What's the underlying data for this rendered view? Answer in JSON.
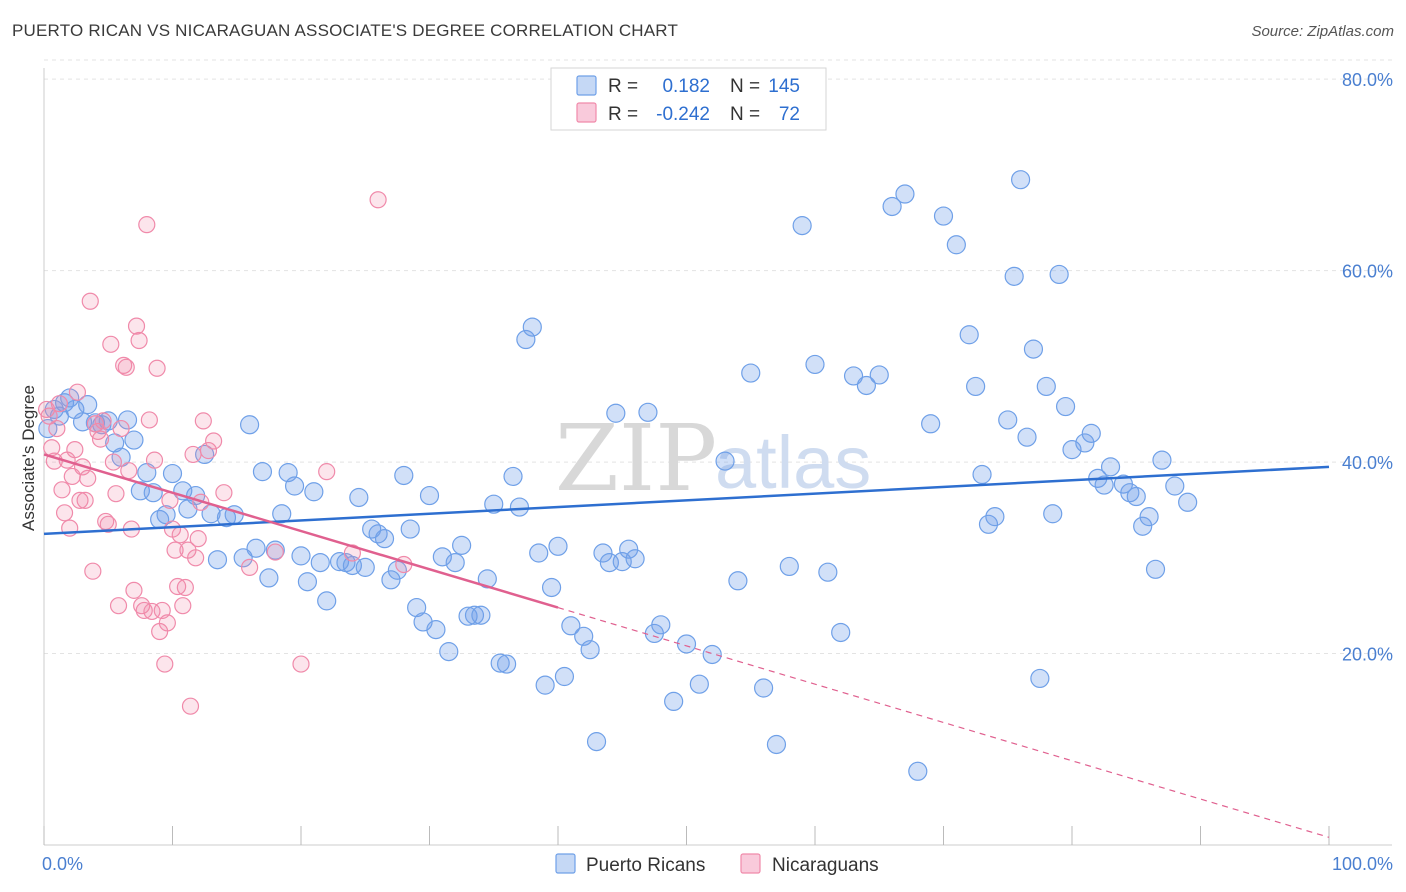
{
  "header": {
    "title": "PUERTO RICAN VS NICARAGUAN ASSOCIATE'S DEGREE CORRELATION CHART",
    "source": "Source: ZipAtlas.com"
  },
  "watermark": {
    "zip": "ZIP",
    "atlas": "atlas"
  },
  "legend": {
    "rows": [
      {
        "r_label": "R =",
        "r_value": "0.182",
        "n_label": "N =",
        "n_value": "145",
        "color": "#6fa0e8"
      },
      {
        "r_label": "R =",
        "r_value": "-0.242",
        "n_label": "N =",
        "n_value": "72",
        "color": "#f08aaa"
      }
    ]
  },
  "bottom_legend": {
    "items": [
      {
        "label": "Puerto Ricans",
        "color": "#6fa0e8"
      },
      {
        "label": "Nicaraguans",
        "color": "#f08aaa"
      }
    ]
  },
  "chart_data": {
    "type": "scatter",
    "title": "PUERTO RICAN VS NICARAGUAN ASSOCIATE'S DEGREE CORRELATION CHART",
    "xlabel": "",
    "ylabel": "Associate's Degree",
    "xlim": [
      0,
      100
    ],
    "ylim": [
      0,
      82
    ],
    "x_tick_labels": [
      "0.0%",
      "100.0%"
    ],
    "y_ticks": [
      20,
      40,
      60,
      80
    ],
    "y_tick_labels": [
      "20.0%",
      "40.0%",
      "60.0%",
      "80.0%"
    ],
    "grid": true,
    "legend_position": "top-center",
    "colors": {
      "puerto_ricans": "#6fa0e8",
      "nicaraguans": "#f08aaa",
      "pr_line": "#2e6fd0",
      "nic_line": "#e0608f"
    },
    "series": [
      {
        "name": "Puerto Ricans",
        "r": 0.182,
        "n": 145,
        "trend": {
          "x": [
            0,
            100
          ],
          "y": [
            32.5,
            39.5
          ]
        },
        "points": [
          [
            0.3,
            43.5
          ],
          [
            0.8,
            45.5
          ],
          [
            1.2,
            44.8
          ],
          [
            1.6,
            46.2
          ],
          [
            2.0,
            46.7
          ],
          [
            2.4,
            45.5
          ],
          [
            3.0,
            44.2
          ],
          [
            3.4,
            46.0
          ],
          [
            4.0,
            44.1
          ],
          [
            4.5,
            43.9
          ],
          [
            5.0,
            44.3
          ],
          [
            5.5,
            42.0
          ],
          [
            6.0,
            40.5
          ],
          [
            6.5,
            44.4
          ],
          [
            7.0,
            42.3
          ],
          [
            7.5,
            37.0
          ],
          [
            8.0,
            38.9
          ],
          [
            8.5,
            36.8
          ],
          [
            9.0,
            34.0
          ],
          [
            9.5,
            34.5
          ],
          [
            10.0,
            38.8
          ],
          [
            10.8,
            37.0
          ],
          [
            11.2,
            35.1
          ],
          [
            11.8,
            36.5
          ],
          [
            12.5,
            40.8
          ],
          [
            13.0,
            34.6
          ],
          [
            13.5,
            29.8
          ],
          [
            14.2,
            34.2
          ],
          [
            14.8,
            34.5
          ],
          [
            15.5,
            30.0
          ],
          [
            16.0,
            43.9
          ],
          [
            16.5,
            31.0
          ],
          [
            17.0,
            39.0
          ],
          [
            17.5,
            27.9
          ],
          [
            18.0,
            30.8
          ],
          [
            18.5,
            34.6
          ],
          [
            19.0,
            38.9
          ],
          [
            19.5,
            37.5
          ],
          [
            20.0,
            30.2
          ],
          [
            20.5,
            27.5
          ],
          [
            21.0,
            36.9
          ],
          [
            21.5,
            29.5
          ],
          [
            22.0,
            25.5
          ],
          [
            23.0,
            29.6
          ],
          [
            23.5,
            29.5
          ],
          [
            24.0,
            29.2
          ],
          [
            24.5,
            36.3
          ],
          [
            25.0,
            29.0
          ],
          [
            25.5,
            33.0
          ],
          [
            26.0,
            32.5
          ],
          [
            26.5,
            32.0
          ],
          [
            27.0,
            27.7
          ],
          [
            27.5,
            28.7
          ],
          [
            28.0,
            38.6
          ],
          [
            28.5,
            33.0
          ],
          [
            29.0,
            24.8
          ],
          [
            29.5,
            23.3
          ],
          [
            30.0,
            36.5
          ],
          [
            30.5,
            22.5
          ],
          [
            31.0,
            30.1
          ],
          [
            31.5,
            20.2
          ],
          [
            32.0,
            29.5
          ],
          [
            32.5,
            31.3
          ],
          [
            33.0,
            23.9
          ],
          [
            33.5,
            24.0
          ],
          [
            34.0,
            24.0
          ],
          [
            34.5,
            27.8
          ],
          [
            35.0,
            35.6
          ],
          [
            35.5,
            19.0
          ],
          [
            36.0,
            18.9
          ],
          [
            36.5,
            38.5
          ],
          [
            37.0,
            35.3
          ],
          [
            37.5,
            52.8
          ],
          [
            38.0,
            54.1
          ],
          [
            38.5,
            30.5
          ],
          [
            39.0,
            16.7
          ],
          [
            39.5,
            26.9
          ],
          [
            40.0,
            31.2
          ],
          [
            40.5,
            17.6
          ],
          [
            41.0,
            22.9
          ],
          [
            42.0,
            21.8
          ],
          [
            42.5,
            20.4
          ],
          [
            43.0,
            10.8
          ],
          [
            43.5,
            30.5
          ],
          [
            44.0,
            29.5
          ],
          [
            44.5,
            45.1
          ],
          [
            45.0,
            29.6
          ],
          [
            45.5,
            30.9
          ],
          [
            46.0,
            29.9
          ],
          [
            47.0,
            45.2
          ],
          [
            47.5,
            22.1
          ],
          [
            48.0,
            23.0
          ],
          [
            49.0,
            15.0
          ],
          [
            50.0,
            21.0
          ],
          [
            51.0,
            16.8
          ],
          [
            52.0,
            19.9
          ],
          [
            53.0,
            40.1
          ],
          [
            54.0,
            27.6
          ],
          [
            55.0,
            49.3
          ],
          [
            56.0,
            16.4
          ],
          [
            57.0,
            10.5
          ],
          [
            58.0,
            29.1
          ],
          [
            59.0,
            64.7
          ],
          [
            60.0,
            50.2
          ],
          [
            61.0,
            28.5
          ],
          [
            62.0,
            22.2
          ],
          [
            63.0,
            49.0
          ],
          [
            64.0,
            48.0
          ],
          [
            65.0,
            49.1
          ],
          [
            66.0,
            66.7
          ],
          [
            67.0,
            68.0
          ],
          [
            68.0,
            7.7
          ],
          [
            69.0,
            44.0
          ],
          [
            70.0,
            65.7
          ],
          [
            71.0,
            62.7
          ],
          [
            72.0,
            53.3
          ],
          [
            72.5,
            47.9
          ],
          [
            73.0,
            38.7
          ],
          [
            73.5,
            33.5
          ],
          [
            74.0,
            34.3
          ],
          [
            75.0,
            44.4
          ],
          [
            75.5,
            59.4
          ],
          [
            76.0,
            69.5
          ],
          [
            76.5,
            42.6
          ],
          [
            77.0,
            51.8
          ],
          [
            77.5,
            17.4
          ],
          [
            78.0,
            47.9
          ],
          [
            78.5,
            34.6
          ],
          [
            79.0,
            59.6
          ],
          [
            79.5,
            45.8
          ],
          [
            80.0,
            41.3
          ],
          [
            81.0,
            42.0
          ],
          [
            81.5,
            43.0
          ],
          [
            82.0,
            38.3
          ],
          [
            82.5,
            37.6
          ],
          [
            83.0,
            39.5
          ],
          [
            84.0,
            37.7
          ],
          [
            84.5,
            36.8
          ],
          [
            85.0,
            36.4
          ],
          [
            85.5,
            33.3
          ],
          [
            86.0,
            34.3
          ],
          [
            86.5,
            28.8
          ],
          [
            87.0,
            40.2
          ],
          [
            88.0,
            37.5
          ],
          [
            89.0,
            35.8
          ]
        ]
      },
      {
        "name": "Nicaraguans",
        "r": -0.242,
        "n": 72,
        "trend": {
          "x": [
            0,
            100
          ],
          "y": [
            40.8,
            0.8
          ]
        },
        "trend_solid_until_x": 40,
        "points": [
          [
            0.2,
            45.5
          ],
          [
            0.4,
            44.8
          ],
          [
            0.6,
            41.5
          ],
          [
            0.8,
            40.1
          ],
          [
            1.0,
            43.5
          ],
          [
            1.2,
            46.1
          ],
          [
            1.4,
            37.1
          ],
          [
            1.6,
            34.7
          ],
          [
            1.8,
            40.2
          ],
          [
            2.0,
            33.1
          ],
          [
            2.2,
            38.5
          ],
          [
            2.4,
            41.3
          ],
          [
            2.6,
            47.3
          ],
          [
            2.8,
            36.0
          ],
          [
            3.0,
            39.5
          ],
          [
            3.2,
            36.0
          ],
          [
            3.4,
            38.3
          ],
          [
            3.6,
            56.8
          ],
          [
            3.8,
            28.6
          ],
          [
            4.0,
            44.0
          ],
          [
            4.2,
            43.2
          ],
          [
            4.4,
            42.4
          ],
          [
            4.6,
            44.3
          ],
          [
            4.8,
            33.8
          ],
          [
            5.0,
            33.5
          ],
          [
            5.2,
            52.3
          ],
          [
            5.4,
            40.0
          ],
          [
            5.6,
            36.7
          ],
          [
            5.8,
            25.0
          ],
          [
            6.0,
            43.5
          ],
          [
            6.2,
            50.1
          ],
          [
            6.4,
            49.9
          ],
          [
            6.6,
            39.1
          ],
          [
            6.8,
            33.0
          ],
          [
            7.0,
            26.6
          ],
          [
            7.2,
            54.2
          ],
          [
            7.4,
            52.7
          ],
          [
            7.6,
            25.0
          ],
          [
            7.8,
            24.5
          ],
          [
            8.0,
            64.8
          ],
          [
            8.2,
            44.4
          ],
          [
            8.4,
            24.4
          ],
          [
            8.6,
            40.2
          ],
          [
            8.8,
            49.8
          ],
          [
            9.0,
            22.3
          ],
          [
            9.2,
            24.5
          ],
          [
            9.4,
            18.9
          ],
          [
            9.6,
            23.2
          ],
          [
            9.8,
            36.0
          ],
          [
            10.0,
            33.0
          ],
          [
            10.2,
            30.8
          ],
          [
            10.4,
            27.0
          ],
          [
            10.6,
            32.4
          ],
          [
            10.8,
            25.0
          ],
          [
            11.0,
            26.9
          ],
          [
            11.2,
            30.8
          ],
          [
            11.4,
            14.5
          ],
          [
            11.6,
            40.8
          ],
          [
            11.8,
            30.0
          ],
          [
            12.0,
            32.0
          ],
          [
            12.2,
            35.8
          ],
          [
            12.4,
            44.3
          ],
          [
            12.8,
            41.2
          ],
          [
            13.2,
            42.2
          ],
          [
            14.0,
            36.8
          ],
          [
            16.0,
            29.0
          ],
          [
            18.0,
            30.6
          ],
          [
            20.0,
            18.9
          ],
          [
            22.0,
            39.0
          ],
          [
            24.0,
            30.5
          ],
          [
            26.0,
            67.4
          ],
          [
            28.0,
            29.3
          ]
        ]
      }
    ]
  }
}
